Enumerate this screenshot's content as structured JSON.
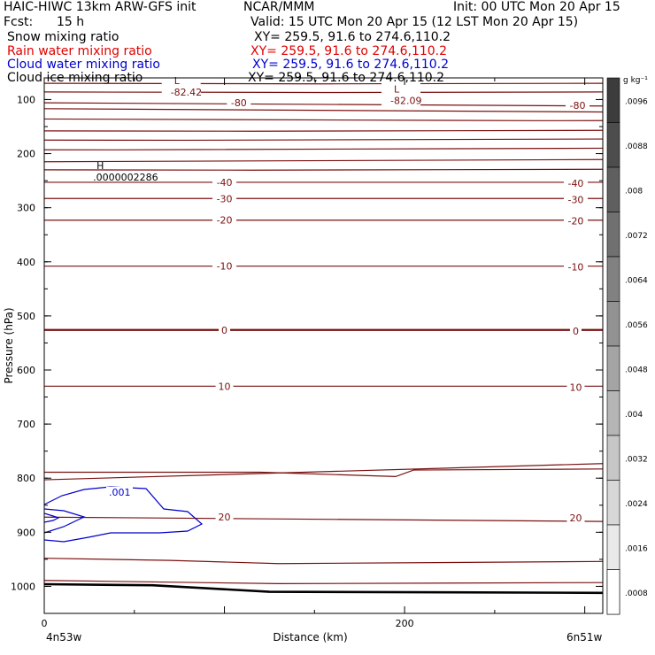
{
  "header": {
    "title_left": "HAIC-HIWC 13km ARW-GFS init",
    "org": "NCAR/MMM",
    "init": "Init: 00 UTC Mon 20 Apr 15",
    "fcst_label": "Fcst:",
    "fcst_value": "15 h",
    "valid": "Valid: 15 UTC Mon 20 Apr 15 (12 LST Mon 20 Apr 15)"
  },
  "fields": [
    {
      "name": "Snow mixing ratio",
      "xy": "XY= 259.5, 91.6 to 274.6,110.2",
      "color": "#000000"
    },
    {
      "name": "Rain water mixing ratio",
      "xy": "XY= 259.5, 91.6 to 274.6,110.2",
      "color": "#e00000"
    },
    {
      "name": "Cloud water mixing ratio",
      "xy": "XY= 259.5, 91.6 to 274.6,110.2",
      "color": "#0000cc"
    },
    {
      "name": "Cloud ice mixing ratio",
      "xy": "XY= 259.5, 91.6 to 274.6,110.2",
      "color": "#000000"
    }
  ],
  "chart_data": {
    "type": "contour",
    "xlabel": "Distance (km)",
    "ylabel": "Pressure (hPa)",
    "xlim": [
      0,
      310
    ],
    "ylim": [
      1050,
      60
    ],
    "x_ticks": [
      0,
      200
    ],
    "y_ticks": [
      100,
      200,
      300,
      400,
      500,
      600,
      700,
      800,
      900,
      1000
    ],
    "x_endpoints": {
      "left": "4n53w",
      "right": "6n51w"
    },
    "temperature_contours": [
      {
        "level": -80,
        "label": "-80",
        "p": [
          70,
          70
        ]
      },
      {
        "level": -80,
        "label": "-80",
        "p": [
          86,
          86
        ]
      },
      {
        "level": -80,
        "label": "-80",
        "p": [
          106,
          112
        ]
      },
      {
        "level": -80,
        "label": "-80",
        "p": [
          117,
          123
        ]
      },
      {
        "level": -80,
        "label": "-80",
        "p": [
          136,
          139
        ]
      },
      {
        "level": -80,
        "label": "-80",
        "p": [
          158,
          157
        ]
      },
      {
        "level": -80,
        "label": "-80",
        "p": [
          175,
          173
        ]
      },
      {
        "level": -80,
        "label": "-80",
        "p": [
          193,
          190
        ]
      },
      {
        "level": -80,
        "label": "-80",
        "p": [
          215,
          211
        ]
      },
      {
        "level": -80,
        "label": "-80",
        "p": [
          230,
          229
        ]
      },
      {
        "level": -40,
        "label": "-40",
        "p": [
          253,
          253
        ]
      },
      {
        "level": -30,
        "label": "-30",
        "p": [
          283,
          283
        ]
      },
      {
        "level": -20,
        "label": "-20",
        "p": [
          323,
          323
        ]
      },
      {
        "level": -10,
        "label": "-10",
        "p": [
          408,
          408
        ]
      },
      {
        "level": 0,
        "label": "0",
        "p": [
          526,
          526
        ]
      },
      {
        "level": 10,
        "label": "10",
        "p": [
          630,
          630
        ]
      },
      {
        "level": 20,
        "label": "20",
        "p": [
          789,
          783
        ]
      },
      {
        "level": 20,
        "label": "20",
        "p": [
          803,
          773
        ]
      },
      {
        "level": 20,
        "label": "20",
        "p": [
          872,
          880
        ]
      },
      {
        "level": 20,
        "label": "20",
        "p": [
          948,
          954
        ]
      },
      {
        "level": 20,
        "label": "20",
        "p": [
          989,
          993
        ]
      }
    ],
    "labeled_isotherms": [
      "-80",
      "-40",
      "-30",
      "-20",
      "-10",
      "0",
      "10",
      "20"
    ],
    "extrema": [
      {
        "type": "L",
        "value": "-82.42",
        "x": 76,
        "p": 75
      },
      {
        "type": "L",
        "value": "-82.09",
        "x": 198,
        "p": 90
      },
      {
        "type": "H",
        "value": ".0000002286",
        "x": 33,
        "p": 232
      }
    ],
    "cloud_water_contour": {
      "label": ".001",
      "units": "g kg-1"
    },
    "colorbar": {
      "units": "g kg⁻¹",
      "labels": [
        ".0096",
        ".0088",
        ".008",
        ".0072",
        ".0064",
        ".0056",
        ".0048",
        ".004",
        ".0032",
        ".0024",
        ".0016",
        ".0008"
      ]
    }
  }
}
